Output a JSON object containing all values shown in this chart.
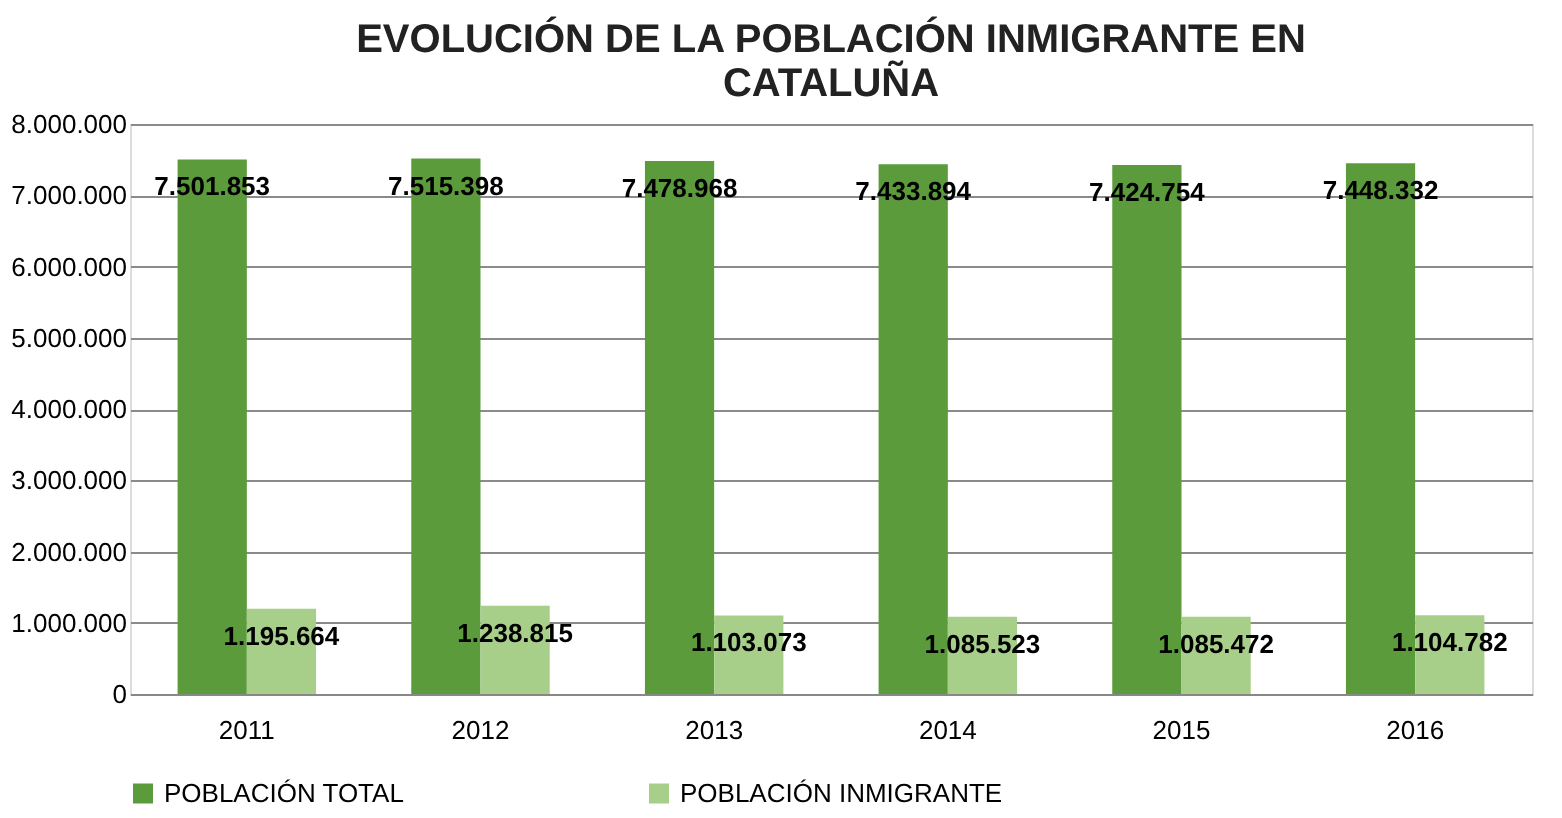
{
  "chart_data": {
    "type": "bar",
    "title": "EVOLUCIÓN DE LA POBLACIÓN INMIGRANTE EN CATALUÑA",
    "categories": [
      "2011",
      "2012",
      "2013",
      "2014",
      "2015",
      "2016"
    ],
    "series": [
      {
        "name": "POBLACIÓN TOTAL",
        "color": "#5b9b3b",
        "values": [
          7501853,
          7515398,
          7478968,
          7433894,
          7424754,
          7448332
        ],
        "value_labels": [
          "7.501.853",
          "7.515.398",
          "7.478.968",
          "7.433.894",
          "7.424.754",
          "7.448.332"
        ]
      },
      {
        "name": "POBLACIÓN INMIGRANTE",
        "color": "#a8cf8a",
        "values": [
          1195664,
          1238815,
          1103073,
          1085523,
          1085472,
          1104782
        ],
        "value_labels": [
          "1.195.664",
          "1.238.815",
          "1.103.073",
          "1.085.523",
          "1.085.472",
          "1.104.782"
        ]
      }
    ],
    "ylim": [
      0,
      8000000
    ],
    "yticks": [
      0,
      {
        "value": 1000000,
        "label": "1.000.000"
      },
      {
        "value": 2000000,
        "label": "2.000.000"
      },
      {
        "value": 3000000,
        "label": "3.000.000"
      },
      {
        "value": 4000000,
        "label": "4.000.000"
      },
      {
        "value": 5000000,
        "label": "5.000.000"
      },
      {
        "value": 6000000,
        "label": "6.000.000"
      },
      {
        "value": 7000000,
        "label": "7.000.000"
      },
      {
        "value": 8000000,
        "label": "8.000.000"
      }
    ],
    "grid": "y",
    "legend": "bottom"
  }
}
